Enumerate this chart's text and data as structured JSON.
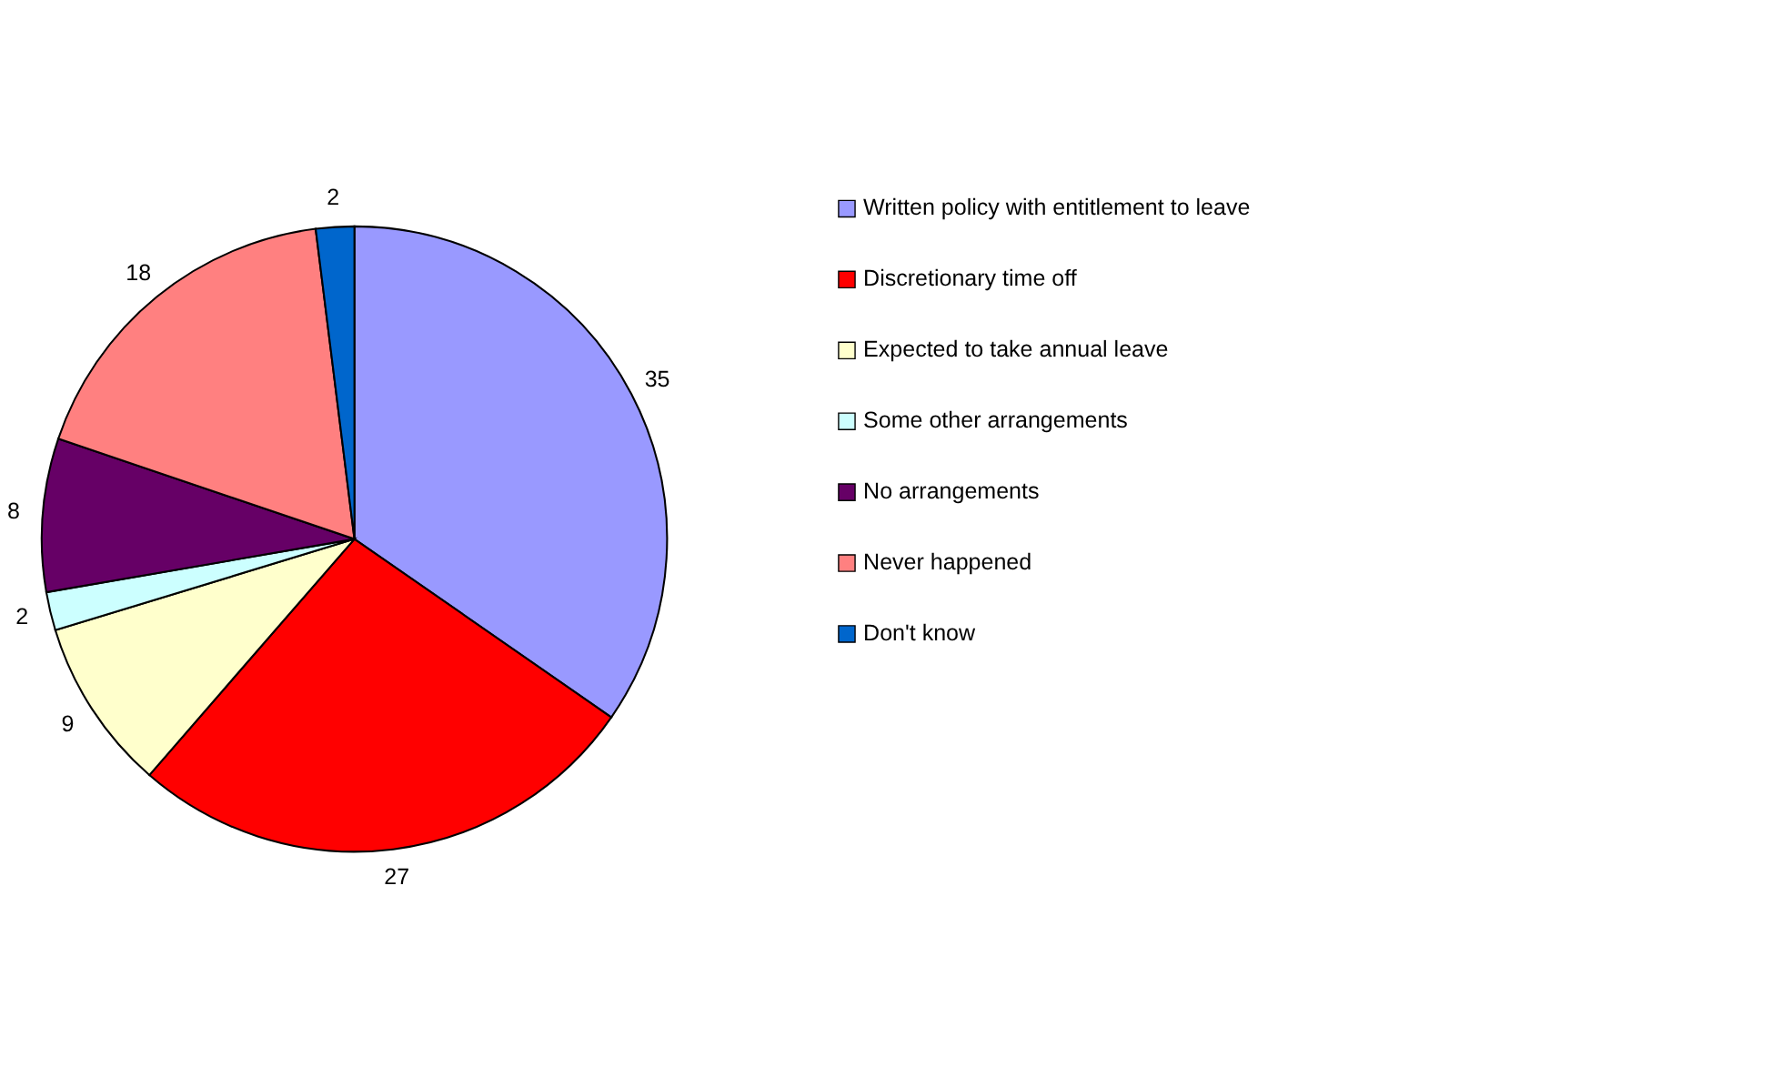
{
  "chart_data": {
    "type": "pie",
    "categories": [
      "Written policy with entitlement to leave",
      "Discretionary time off",
      "Expected to take annual leave",
      "Some other arrangements",
      "No arrangements",
      "Never happened",
      "Don't know"
    ],
    "values": [
      35,
      27,
      9,
      2,
      8,
      18,
      2
    ],
    "colors": [
      "#9999ff",
      "#ff0000",
      "#ffffcc",
      "#ccffff",
      "#660066",
      "#ff8080",
      "#0066cc"
    ],
    "data_labels": true,
    "legend": "right"
  }
}
